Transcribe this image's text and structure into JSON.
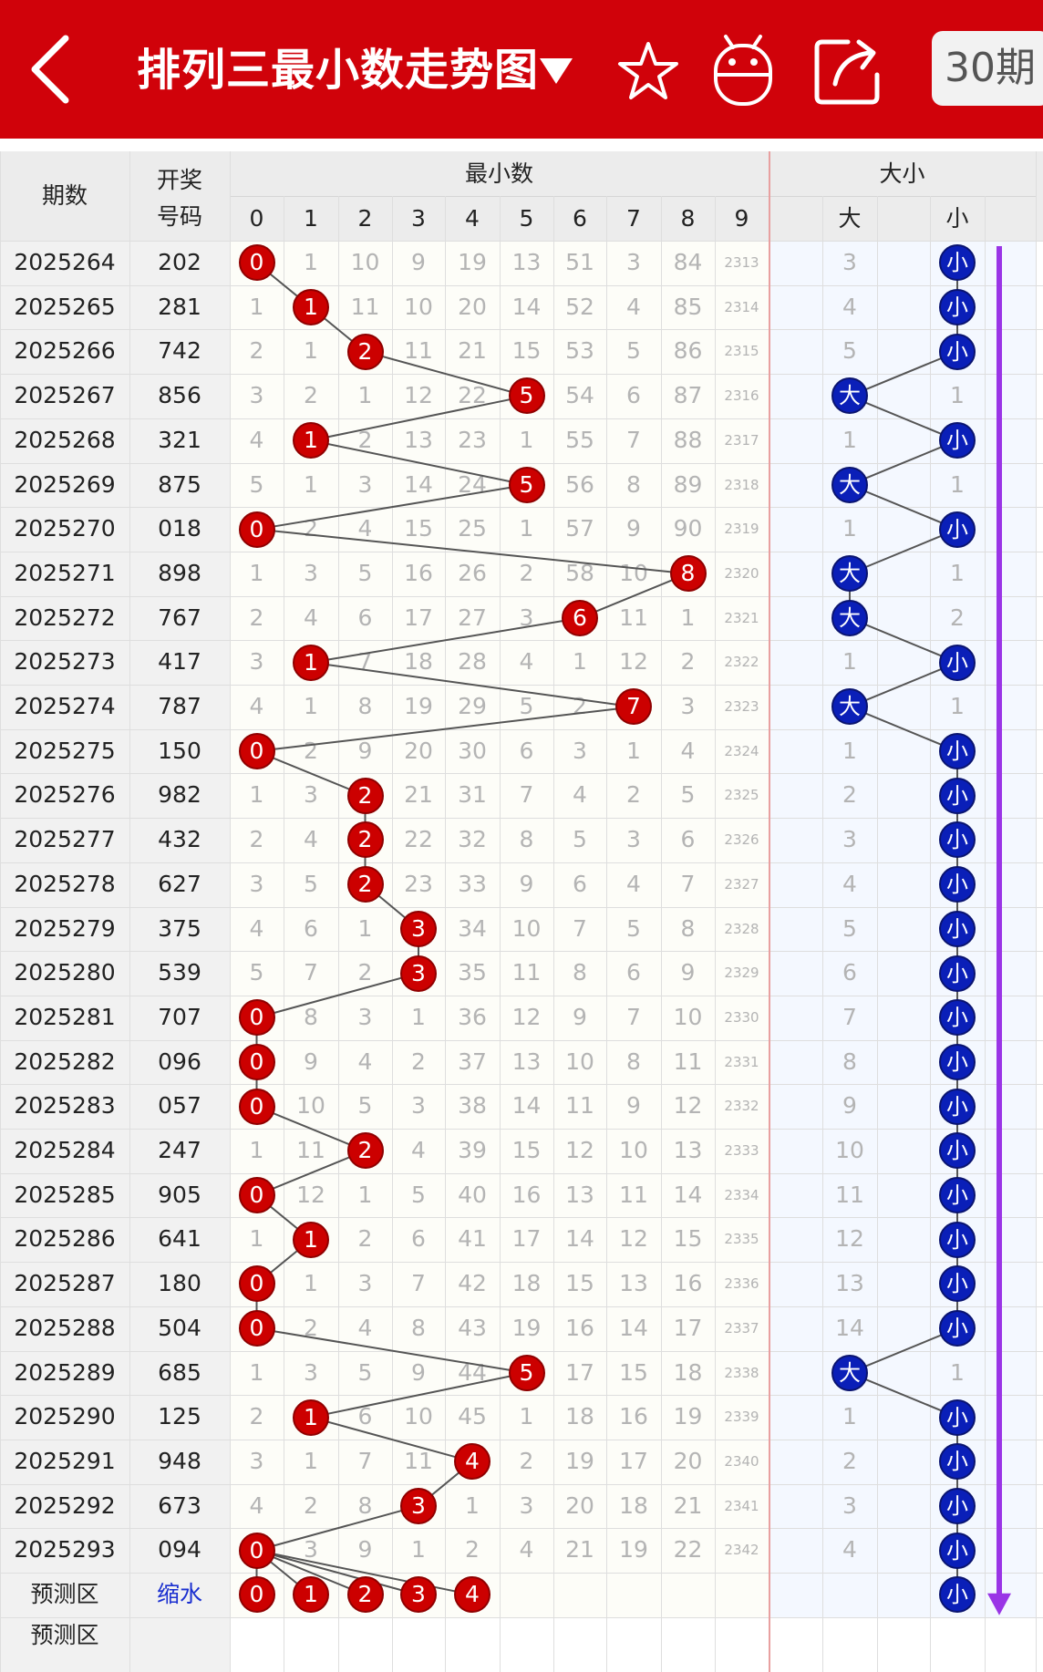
{
  "header": {
    "title": "排列三最小数走势图",
    "period_button": "30期",
    "icons": [
      "back-arrow-icon",
      "dropdown-caret-icon",
      "star-icon",
      "android-robot-icon",
      "share-icon"
    ]
  },
  "table_headers": {
    "issue": "期数",
    "draw_line1": "开奖",
    "draw_line2": "号码",
    "min_group": "最小数",
    "size_group": "大小",
    "big": "大",
    "small": "小",
    "digits": [
      "0",
      "1",
      "2",
      "3",
      "4",
      "5",
      "6",
      "7",
      "8",
      "9"
    ]
  },
  "rows": [
    {
      "issue": "2025264",
      "draw": "202",
      "min": 0,
      "miss": [
        "0",
        "1",
        "10",
        "9",
        "19",
        "13",
        "51",
        "3",
        "84",
        "2313"
      ],
      "size": "小",
      "big_miss": "3",
      "small_miss": ""
    },
    {
      "issue": "2025265",
      "draw": "281",
      "min": 1,
      "miss": [
        "1",
        "1",
        "11",
        "10",
        "20",
        "14",
        "52",
        "4",
        "85",
        "2314"
      ],
      "size": "小",
      "big_miss": "4",
      "small_miss": ""
    },
    {
      "issue": "2025266",
      "draw": "742",
      "min": 2,
      "miss": [
        "2",
        "1",
        "2",
        "11",
        "21",
        "15",
        "53",
        "5",
        "86",
        "2315"
      ],
      "size": "小",
      "big_miss": "5",
      "small_miss": ""
    },
    {
      "issue": "2025267",
      "draw": "856",
      "min": 5,
      "miss": [
        "3",
        "2",
        "1",
        "12",
        "22",
        "5",
        "54",
        "6",
        "87",
        "2316"
      ],
      "size": "大",
      "big_miss": "",
      "small_miss": "1"
    },
    {
      "issue": "2025268",
      "draw": "321",
      "min": 1,
      "miss": [
        "4",
        "1",
        "2",
        "13",
        "23",
        "1",
        "55",
        "7",
        "88",
        "2317"
      ],
      "size": "小",
      "big_miss": "1",
      "small_miss": ""
    },
    {
      "issue": "2025269",
      "draw": "875",
      "min": 5,
      "miss": [
        "5",
        "1",
        "3",
        "14",
        "24",
        "5",
        "56",
        "8",
        "89",
        "2318"
      ],
      "size": "大",
      "big_miss": "",
      "small_miss": "1"
    },
    {
      "issue": "2025270",
      "draw": "018",
      "min": 0,
      "miss": [
        "0",
        "2",
        "4",
        "15",
        "25",
        "1",
        "57",
        "9",
        "90",
        "2319"
      ],
      "size": "小",
      "big_miss": "1",
      "small_miss": ""
    },
    {
      "issue": "2025271",
      "draw": "898",
      "min": 8,
      "miss": [
        "1",
        "3",
        "5",
        "16",
        "26",
        "2",
        "58",
        "10",
        "8",
        "2320"
      ],
      "size": "大",
      "big_miss": "",
      "small_miss": "1"
    },
    {
      "issue": "2025272",
      "draw": "767",
      "min": 6,
      "miss": [
        "2",
        "4",
        "6",
        "17",
        "27",
        "3",
        "6",
        "11",
        "1",
        "2321"
      ],
      "size": "大",
      "big_miss": "",
      "small_miss": "2"
    },
    {
      "issue": "2025273",
      "draw": "417",
      "min": 1,
      "miss": [
        "3",
        "1",
        "7",
        "18",
        "28",
        "4",
        "1",
        "12",
        "2",
        "2322"
      ],
      "size": "小",
      "big_miss": "1",
      "small_miss": ""
    },
    {
      "issue": "2025274",
      "draw": "787",
      "min": 7,
      "miss": [
        "4",
        "1",
        "8",
        "19",
        "29",
        "5",
        "2",
        "7",
        "3",
        "2323"
      ],
      "size": "大",
      "big_miss": "",
      "small_miss": "1"
    },
    {
      "issue": "2025275",
      "draw": "150",
      "min": 0,
      "miss": [
        "0",
        "2",
        "9",
        "20",
        "30",
        "6",
        "3",
        "1",
        "4",
        "2324"
      ],
      "size": "小",
      "big_miss": "1",
      "small_miss": ""
    },
    {
      "issue": "2025276",
      "draw": "982",
      "min": 2,
      "miss": [
        "1",
        "3",
        "2",
        "21",
        "31",
        "7",
        "4",
        "2",
        "5",
        "2325"
      ],
      "size": "小",
      "big_miss": "2",
      "small_miss": ""
    },
    {
      "issue": "2025277",
      "draw": "432",
      "min": 2,
      "miss": [
        "2",
        "4",
        "2",
        "22",
        "32",
        "8",
        "5",
        "3",
        "6",
        "2326"
      ],
      "size": "小",
      "big_miss": "3",
      "small_miss": ""
    },
    {
      "issue": "2025278",
      "draw": "627",
      "min": 2,
      "miss": [
        "3",
        "5",
        "2",
        "23",
        "33",
        "9",
        "6",
        "4",
        "7",
        "2327"
      ],
      "size": "小",
      "big_miss": "4",
      "small_miss": ""
    },
    {
      "issue": "2025279",
      "draw": "375",
      "min": 3,
      "miss": [
        "4",
        "6",
        "1",
        "3",
        "34",
        "10",
        "7",
        "5",
        "8",
        "2328"
      ],
      "size": "小",
      "big_miss": "5",
      "small_miss": ""
    },
    {
      "issue": "2025280",
      "draw": "539",
      "min": 3,
      "miss": [
        "5",
        "7",
        "2",
        "3",
        "35",
        "11",
        "8",
        "6",
        "9",
        "2329"
      ],
      "size": "小",
      "big_miss": "6",
      "small_miss": ""
    },
    {
      "issue": "2025281",
      "draw": "707",
      "min": 0,
      "miss": [
        "0",
        "8",
        "3",
        "1",
        "36",
        "12",
        "9",
        "7",
        "10",
        "2330"
      ],
      "size": "小",
      "big_miss": "7",
      "small_miss": ""
    },
    {
      "issue": "2025282",
      "draw": "096",
      "min": 0,
      "miss": [
        "0",
        "9",
        "4",
        "2",
        "37",
        "13",
        "10",
        "8",
        "11",
        "2331"
      ],
      "size": "小",
      "big_miss": "8",
      "small_miss": ""
    },
    {
      "issue": "2025283",
      "draw": "057",
      "min": 0,
      "miss": [
        "0",
        "10",
        "5",
        "3",
        "38",
        "14",
        "11",
        "9",
        "12",
        "2332"
      ],
      "size": "小",
      "big_miss": "9",
      "small_miss": ""
    },
    {
      "issue": "2025284",
      "draw": "247",
      "min": 2,
      "miss": [
        "1",
        "11",
        "2",
        "4",
        "39",
        "15",
        "12",
        "10",
        "13",
        "2333"
      ],
      "size": "小",
      "big_miss": "10",
      "small_miss": ""
    },
    {
      "issue": "2025285",
      "draw": "905",
      "min": 0,
      "miss": [
        "0",
        "12",
        "1",
        "5",
        "40",
        "16",
        "13",
        "11",
        "14",
        "2334"
      ],
      "size": "小",
      "big_miss": "11",
      "small_miss": ""
    },
    {
      "issue": "2025286",
      "draw": "641",
      "min": 1,
      "miss": [
        "1",
        "1",
        "2",
        "6",
        "41",
        "17",
        "14",
        "12",
        "15",
        "2335"
      ],
      "size": "小",
      "big_miss": "12",
      "small_miss": ""
    },
    {
      "issue": "2025287",
      "draw": "180",
      "min": 0,
      "miss": [
        "0",
        "1",
        "3",
        "7",
        "42",
        "18",
        "15",
        "13",
        "16",
        "2336"
      ],
      "size": "小",
      "big_miss": "13",
      "small_miss": ""
    },
    {
      "issue": "2025288",
      "draw": "504",
      "min": 0,
      "miss": [
        "0",
        "2",
        "4",
        "8",
        "43",
        "19",
        "16",
        "14",
        "17",
        "2337"
      ],
      "size": "小",
      "big_miss": "14",
      "small_miss": ""
    },
    {
      "issue": "2025289",
      "draw": "685",
      "min": 5,
      "miss": [
        "1",
        "3",
        "5",
        "9",
        "44",
        "5",
        "17",
        "15",
        "18",
        "2338"
      ],
      "size": "大",
      "big_miss": "",
      "small_miss": "1"
    },
    {
      "issue": "2025290",
      "draw": "125",
      "min": 1,
      "miss": [
        "2",
        "1",
        "6",
        "10",
        "45",
        "1",
        "18",
        "16",
        "19",
        "2339"
      ],
      "size": "小",
      "big_miss": "1",
      "small_miss": ""
    },
    {
      "issue": "2025291",
      "draw": "948",
      "min": 4,
      "miss": [
        "3",
        "1",
        "7",
        "11",
        "4",
        "2",
        "19",
        "17",
        "20",
        "2340"
      ],
      "size": "小",
      "big_miss": "2",
      "small_miss": ""
    },
    {
      "issue": "2025292",
      "draw": "673",
      "min": 3,
      "miss": [
        "4",
        "2",
        "8",
        "3",
        "1",
        "3",
        "20",
        "18",
        "21",
        "2341"
      ],
      "size": "小",
      "big_miss": "3",
      "small_miss": ""
    },
    {
      "issue": "2025293",
      "draw": "094",
      "min": 0,
      "miss": [
        "0",
        "3",
        "9",
        "1",
        "2",
        "4",
        "21",
        "19",
        "22",
        "2342"
      ],
      "size": "小",
      "big_miss": "4",
      "small_miss": ""
    }
  ],
  "prediction": {
    "label": "预测区",
    "shrink": "缩水",
    "balls": [
      "0",
      "1",
      "2",
      "3",
      "4"
    ],
    "size": "小",
    "second_label": "预测区"
  },
  "colors": {
    "header_red": "#d0020a",
    "ball_red": "#cc0000",
    "ball_blue": "#0a1fb8",
    "trend_arrow": "#9a35e6",
    "shrink_text": "#1a2fd0"
  }
}
